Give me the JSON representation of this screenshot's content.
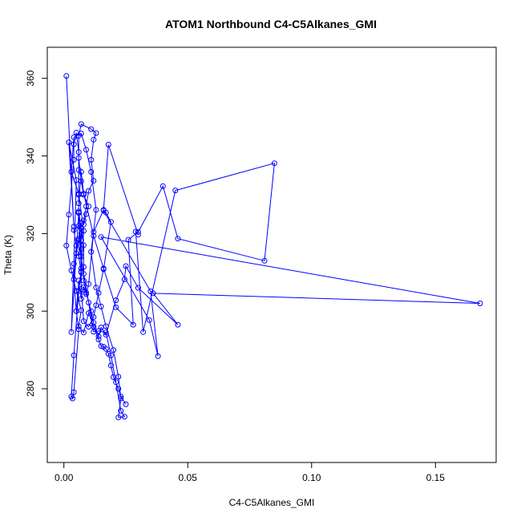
{
  "chart_data": {
    "type": "line",
    "title": "ATOM1 Northbound C4-C5Alkanes_GMI",
    "xlabel": "C4-C5Alkanes_GMI",
    "ylabel": "Theta (K)",
    "xlim": [
      -0.0067,
      0.1745
    ],
    "ylim": [
      261,
      368
    ],
    "xticks": [
      0.0,
      0.05,
      0.1,
      0.15
    ],
    "xtick_labels": [
      "0.00",
      "0.05",
      "0.10",
      "0.15"
    ],
    "yticks": [
      280,
      300,
      320,
      340,
      360
    ],
    "ytick_labels": [
      "280",
      "300",
      "320",
      "340",
      "360"
    ],
    "grid": false,
    "legend": "none",
    "color": "#0000ff",
    "marker": "open-circle",
    "series": [
      {
        "values": [
          [
            0.001,
            360.6
          ],
          [
            0.004,
            321.8
          ],
          [
            0.002,
            343.5
          ],
          [
            0.005,
            333.8
          ],
          [
            0.004,
            312.2
          ],
          [
            0.003,
            294.6
          ],
          [
            0.006,
            325.3
          ],
          [
            0.007,
            311.0
          ],
          [
            0.006,
            305.2
          ],
          [
            0.004,
            288.6
          ],
          [
            0.003,
            278.0
          ],
          [
            0.0035,
            277.5
          ],
          [
            0.004,
            279.1
          ],
          [
            0.006,
            295.3
          ],
          [
            0.005,
            300.0
          ],
          [
            0.007,
            310.2
          ],
          [
            0.008,
            320.7
          ],
          [
            0.006,
            330.3
          ],
          [
            0.003,
            335.9
          ],
          [
            0.004,
            344.8
          ],
          [
            0.007,
            345.8
          ],
          [
            0.009,
            341.6
          ],
          [
            0.011,
            335.9
          ],
          [
            0.013,
            326.1
          ],
          [
            0.011,
            315.3
          ],
          [
            0.013,
            306.1
          ],
          [
            0.015,
            301.2
          ],
          [
            0.017,
            296.1
          ],
          [
            0.02,
            290.0
          ],
          [
            0.022,
            283.1
          ],
          [
            0.023,
            277.5
          ],
          [
            0.022,
            272.6
          ],
          [
            0.0245,
            272.8
          ],
          [
            0.023,
            274.3
          ],
          [
            0.021,
            281.7
          ],
          [
            0.019,
            288.6
          ],
          [
            0.017,
            294.5
          ],
          [
            0.014,
            294.9
          ],
          [
            0.012,
            294.7
          ],
          [
            0.01,
            302.2
          ],
          [
            0.008,
            309.6
          ],
          [
            0.007,
            314.1
          ],
          [
            0.007,
            320.0
          ],
          [
            0.007,
            322.7
          ],
          [
            0.006,
            318.7
          ],
          [
            0.005,
            314.9
          ],
          [
            0.006,
            318.3
          ],
          [
            0.007,
            316.0
          ],
          [
            0.006,
            325.4
          ],
          [
            0.006,
            327.8
          ],
          [
            0.007,
            335.9
          ],
          [
            0.008,
            330.3
          ],
          [
            0.012,
            319.4
          ],
          [
            0.016,
            311.0
          ],
          [
            0.021,
            301.0
          ],
          [
            0.028,
            296.5
          ],
          [
            0.026,
            318.4
          ],
          [
            0.03,
            320.4
          ],
          [
            0.04,
            332.2
          ],
          [
            0.046,
            318.7
          ],
          [
            0.081,
            313.0
          ],
          [
            0.085,
            338.1
          ],
          [
            0.045,
            331.1
          ],
          [
            0.032,
            294.6
          ],
          [
            0.029,
            320.5
          ],
          [
            0.03,
            319.7
          ],
          [
            0.018,
            342.9
          ],
          [
            0.016,
            326.1
          ],
          [
            0.012,
            320.4
          ],
          [
            0.01,
            307.0
          ],
          [
            0.009,
            304.4
          ],
          [
            0.008,
            306.2
          ],
          [
            0.007,
            303.2
          ],
          [
            0.006,
            307.9
          ],
          [
            0.005,
            300.0
          ],
          [
            0.004,
            308.2
          ],
          [
            0.005,
            316.9
          ],
          [
            0.004,
            320.9
          ],
          [
            0.006,
            322.0
          ],
          [
            0.008,
            322.3
          ],
          [
            0.009,
            325.0
          ],
          [
            0.01,
            327.0
          ],
          [
            0.008,
            330.0
          ],
          [
            0.007,
            333.5
          ],
          [
            0.006,
            339.5
          ],
          [
            0.006,
            345.2
          ],
          [
            0.007,
            348.2
          ],
          [
            0.011,
            346.9
          ],
          [
            0.013,
            345.9
          ],
          [
            0.012,
            344.2
          ],
          [
            0.011,
            339.0
          ],
          [
            0.012,
            333.6
          ],
          [
            0.01,
            331.0
          ],
          [
            0.009,
            327.0
          ],
          [
            0.008,
            323.4
          ],
          [
            0.007,
            318.3
          ],
          [
            0.006,
            314.2
          ],
          [
            0.007,
            310.0
          ],
          [
            0.007,
            305.7
          ],
          [
            0.008,
            297.4
          ],
          [
            0.01,
            296.0
          ],
          [
            0.012,
            298.5
          ],
          [
            0.013,
            301.5
          ],
          [
            0.014,
            304.7
          ],
          [
            0.016,
            310.8
          ],
          [
            0.019,
            323.0
          ],
          [
            0.017,
            325.4
          ],
          [
            0.016,
            325.9
          ],
          [
            0.035,
            305.1
          ],
          [
            0.038,
            288.4
          ],
          [
            0.0345,
            297.7
          ],
          [
            0.015,
            319.1
          ],
          [
            0.168,
            302.0
          ],
          [
            0.036,
            304.6
          ],
          [
            0.046,
            296.5
          ],
          [
            0.03,
            306.0
          ],
          [
            0.025,
            311.6
          ],
          [
            0.0245,
            308.2
          ],
          [
            0.021,
            302.8
          ],
          [
            0.017,
            293.9
          ],
          [
            0.015,
            295.8
          ],
          [
            0.014,
            293.5
          ],
          [
            0.012,
            297.0
          ],
          [
            0.011,
            300.0
          ],
          [
            0.009,
            304.8
          ],
          [
            0.008,
            307.9
          ],
          [
            0.008,
            311.4
          ],
          [
            0.008,
            317.0
          ],
          [
            0.007,
            321.4
          ],
          [
            0.006,
            325.7
          ],
          [
            0.006,
            330.0
          ],
          [
            0.006,
            336.4
          ],
          [
            0.006,
            341.0
          ],
          [
            0.005,
            346.0
          ],
          [
            0.004,
            343.0
          ],
          [
            0.004,
            339.0
          ],
          [
            0.002,
            324.9
          ],
          [
            0.001,
            316.9
          ],
          [
            0.003,
            310.5
          ],
          [
            0.005,
            305.2
          ],
          [
            0.007,
            300.2
          ],
          [
            0.006,
            296.1
          ],
          [
            0.008,
            294.5
          ],
          [
            0.01,
            299.5
          ],
          [
            0.012,
            296.0
          ],
          [
            0.014,
            292.7
          ],
          [
            0.015,
            291.0
          ],
          [
            0.016,
            290.8
          ],
          [
            0.017,
            290.3
          ],
          [
            0.018,
            289.0
          ],
          [
            0.019,
            286.0
          ],
          [
            0.02,
            283.0
          ],
          [
            0.022,
            280.0
          ],
          [
            0.023,
            278.0
          ],
          [
            0.025,
            276.0
          ]
        ]
      }
    ]
  }
}
